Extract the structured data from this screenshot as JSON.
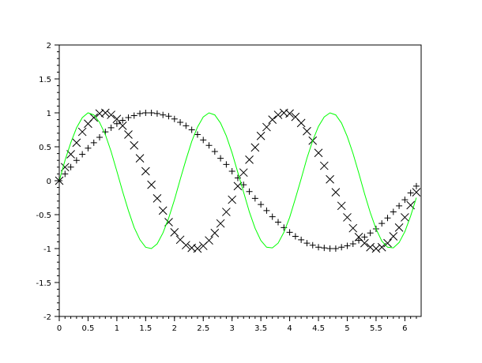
{
  "chart_data": {
    "type": "line",
    "title": "",
    "xlabel": "",
    "ylabel": "",
    "xlim": [
      0,
      6.283
    ],
    "ylim": [
      -2,
      2
    ],
    "grid": false,
    "xticks": [
      "0",
      "0.5",
      "1",
      "1.5",
      "2",
      "2.5",
      "3",
      "3.5",
      "4",
      "4.5",
      "5",
      "5.5",
      "6"
    ],
    "yticks": [
      "-2",
      "-1.5",
      "-1",
      "-0.5",
      "0",
      "0.5",
      "1",
      "1.5",
      "2"
    ],
    "x": [
      0,
      0.1,
      0.2,
      0.3,
      0.4,
      0.5,
      0.6,
      0.7,
      0.8,
      0.9,
      1.0,
      1.1,
      1.2,
      1.3,
      1.4,
      1.5,
      1.6,
      1.7,
      1.8,
      1.9,
      2.0,
      2.1,
      2.2,
      2.3,
      2.4,
      2.5,
      2.6,
      2.7,
      2.8,
      2.9,
      3.0,
      3.1,
      3.2,
      3.3,
      3.4,
      3.5,
      3.6,
      3.7,
      3.8,
      3.9,
      4.0,
      4.1,
      4.2,
      4.3,
      4.4,
      4.5,
      4.6,
      4.7,
      4.8,
      4.9,
      5.0,
      5.1,
      5.2,
      5.3,
      5.4,
      5.5,
      5.6,
      5.7,
      5.8,
      5.9,
      6.0,
      6.1,
      6.2
    ],
    "series": [
      {
        "style": "plus-markers",
        "color": "#000000",
        "values": [
          0,
          0.1,
          0.2,
          0.3,
          0.39,
          0.48,
          0.56,
          0.64,
          0.72,
          0.78,
          0.84,
          0.89,
          0.93,
          0.96,
          0.99,
          1.0,
          1.0,
          0.99,
          0.97,
          0.95,
          0.91,
          0.86,
          0.81,
          0.75,
          0.68,
          0.6,
          0.52,
          0.43,
          0.33,
          0.24,
          0.14,
          0.04,
          -0.06,
          -0.16,
          -0.26,
          -0.35,
          -0.44,
          -0.53,
          -0.61,
          -0.69,
          -0.76,
          -0.82,
          -0.87,
          -0.92,
          -0.95,
          -0.98,
          -0.99,
          -1.0,
          -1.0,
          -0.98,
          -0.96,
          -0.93,
          -0.88,
          -0.83,
          -0.77,
          -0.71,
          -0.63,
          -0.55,
          -0.46,
          -0.37,
          -0.28,
          -0.18,
          -0.08
        ]
      },
      {
        "style": "cross-markers",
        "color": "#000000",
        "values": [
          0,
          0.2,
          0.39,
          0.56,
          0.72,
          0.84,
          0.93,
          0.99,
          1.0,
          0.97,
          0.91,
          0.81,
          0.68,
          0.52,
          0.33,
          0.14,
          -0.06,
          -0.26,
          -0.44,
          -0.61,
          -0.76,
          -0.87,
          -0.95,
          -0.99,
          -1.0,
          -0.96,
          -0.88,
          -0.77,
          -0.63,
          -0.46,
          -0.28,
          -0.08,
          0.12,
          0.31,
          0.49,
          0.66,
          0.79,
          0.9,
          0.97,
          1.0,
          0.99,
          0.94,
          0.85,
          0.73,
          0.59,
          0.41,
          0.22,
          0.02,
          -0.17,
          -0.37,
          -0.54,
          -0.7,
          -0.83,
          -0.92,
          -0.98,
          -1.0,
          -0.98,
          -0.92,
          -0.82,
          -0.69,
          -0.54,
          -0.36,
          -0.17
        ]
      },
      {
        "style": "line",
        "color": "#00ff00",
        "values": [
          0,
          0.3,
          0.56,
          0.78,
          0.93,
          1.0,
          0.97,
          0.86,
          0.68,
          0.43,
          0.14,
          -0.16,
          -0.44,
          -0.69,
          -0.87,
          -0.98,
          -1.0,
          -0.93,
          -0.77,
          -0.55,
          -0.28,
          0.02,
          0.31,
          0.58,
          0.79,
          0.94,
          1.0,
          0.97,
          0.85,
          0.66,
          0.41,
          0.12,
          -0.17,
          -0.46,
          -0.7,
          -0.88,
          -0.98,
          -0.99,
          -0.92,
          -0.76,
          -0.54,
          -0.26,
          0.03,
          0.33,
          0.59,
          0.8,
          0.94,
          1.0,
          0.97,
          0.85,
          0.65,
          0.4,
          0.11,
          -0.19,
          -0.47,
          -0.71,
          -0.89,
          -0.98,
          -0.99,
          -0.91,
          -0.75,
          -0.52,
          -0.25
        ]
      }
    ]
  }
}
